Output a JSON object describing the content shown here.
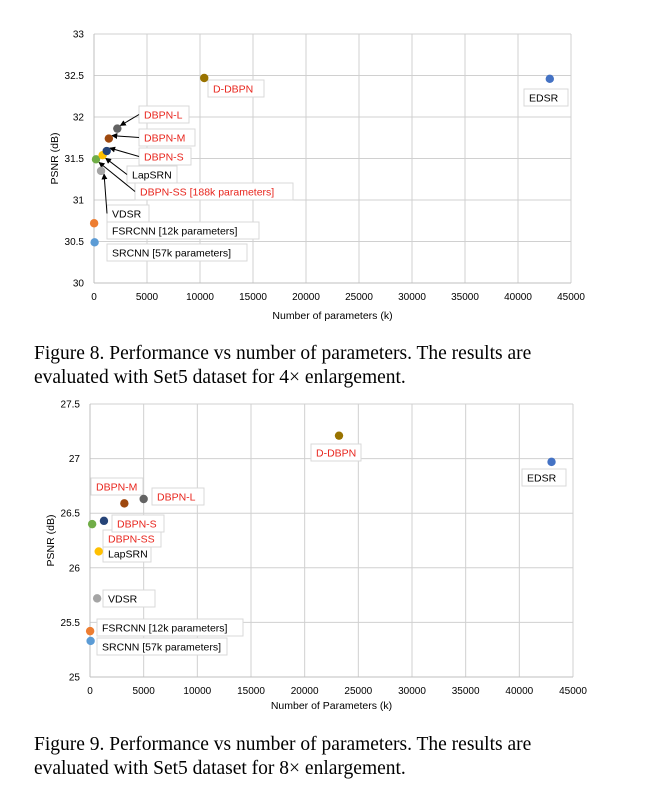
{
  "figures": [
    {
      "caption": "Figure 8. Performance vs number of parameters. The results are evaluated with Set5 dataset for 4× enlargement."
    },
    {
      "caption": "Figure 9. Performance vs number of parameters. The results are evaluated with Set5 dataset for 8× enlargement."
    }
  ],
  "chart_data": [
    {
      "type": "scatter",
      "title": "",
      "xlabel": "Number of parameters (k)",
      "ylabel": "PSNR (dB)",
      "xlim": [
        0,
        45000
      ],
      "ylim": [
        30,
        33
      ],
      "xticks": [
        0,
        5000,
        10000,
        15000,
        20000,
        25000,
        30000,
        35000,
        40000,
        45000
      ],
      "yticks": [
        30,
        30.5,
        31,
        31.5,
        32,
        32.5,
        33
      ],
      "grid": true,
      "points": [
        {
          "label": "SRCNN [57k parameters]",
          "x": 57,
          "y": 30.49,
          "color": "#5b9bd5",
          "label_color": "#000000"
        },
        {
          "label": "FSRCNN [12k parameters]",
          "x": 12,
          "y": 30.72,
          "color": "#ed7d31",
          "label_color": "#000000"
        },
        {
          "label": "VDSR",
          "x": 665,
          "y": 31.35,
          "color": "#a5a5a5",
          "label_color": "#000000"
        },
        {
          "label": "DBPN-SS [188k parameters]",
          "x": 188,
          "y": 31.49,
          "color": "#70ad47",
          "label_color": "#e8251d"
        },
        {
          "label": "LapSRN",
          "x": 812,
          "y": 31.54,
          "color": "#ffc000",
          "label_color": "#000000"
        },
        {
          "label": "DBPN-S",
          "x": 1200,
          "y": 31.59,
          "color": "#264478",
          "label_color": "#e8251d"
        },
        {
          "label": "DBPN-M",
          "x": 1400,
          "y": 31.74,
          "color": "#9e480e",
          "label_color": "#e8251d"
        },
        {
          "label": "DBPN-L",
          "x": 2200,
          "y": 31.86,
          "color": "#636363",
          "label_color": "#e8251d"
        },
        {
          "label": "D-DBPN",
          "x": 10400,
          "y": 32.47,
          "color": "#997300",
          "label_color": "#e8251d"
        },
        {
          "label": "EDSR",
          "x": 43000,
          "y": 32.46,
          "color": "#4472c4",
          "label_color": "#000000"
        }
      ]
    },
    {
      "type": "scatter",
      "title": "",
      "xlabel": "Number of Parameters (k)",
      "ylabel": "PSNR (dB)",
      "xlim": [
        0,
        45000
      ],
      "ylim": [
        25,
        27.5
      ],
      "xticks": [
        0,
        5000,
        10000,
        15000,
        20000,
        25000,
        30000,
        35000,
        40000,
        45000
      ],
      "yticks": [
        25,
        25.5,
        26,
        26.5,
        27,
        27.5
      ],
      "grid": true,
      "points": [
        {
          "label": "SRCNN [57k parameters]",
          "x": 57,
          "y": 25.33,
          "color": "#5b9bd5",
          "label_color": "#000000"
        },
        {
          "label": "FSRCNN [12k parameters]",
          "x": 12,
          "y": 25.42,
          "color": "#ed7d31",
          "label_color": "#000000"
        },
        {
          "label": "VDSR",
          "x": 665,
          "y": 25.72,
          "color": "#a5a5a5",
          "label_color": "#000000"
        },
        {
          "label": "LapSRN",
          "x": 812,
          "y": 26.15,
          "color": "#ffc000",
          "label_color": "#000000"
        },
        {
          "label": "DBPN-SS",
          "x": 200,
          "y": 26.4,
          "color": "#70ad47",
          "label_color": "#e8251d"
        },
        {
          "label": "DBPN-S",
          "x": 1300,
          "y": 26.43,
          "color": "#264478",
          "label_color": "#e8251d"
        },
        {
          "label": "DBPN-M",
          "x": 3200,
          "y": 26.59,
          "color": "#9e480e",
          "label_color": "#e8251d"
        },
        {
          "label": "DBPN-L",
          "x": 5000,
          "y": 26.63,
          "color": "#636363",
          "label_color": "#e8251d"
        },
        {
          "label": "D-DBPN",
          "x": 23200,
          "y": 27.21,
          "color": "#997300",
          "label_color": "#e8251d"
        },
        {
          "label": "EDSR",
          "x": 43000,
          "y": 26.97,
          "color": "#4472c4",
          "label_color": "#000000"
        }
      ]
    }
  ]
}
